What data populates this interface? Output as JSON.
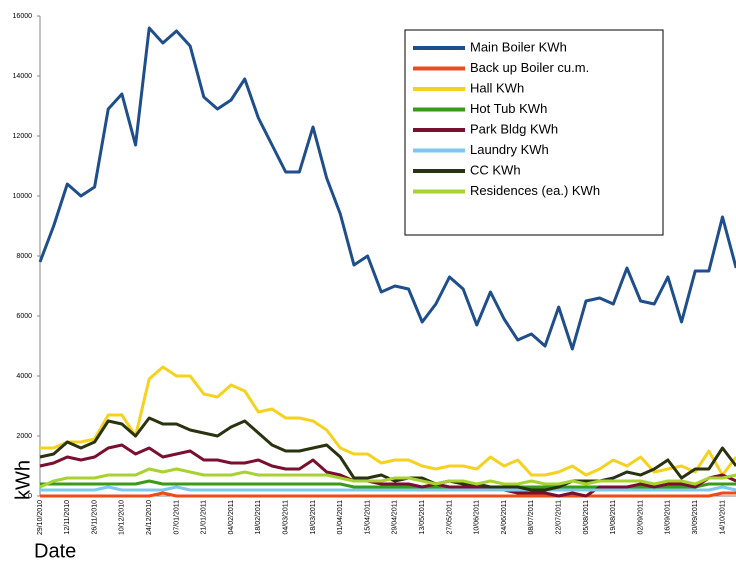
{
  "chart_data": {
    "type": "line",
    "x_label": "Date",
    "y_label": "kWh",
    "categories": [
      "29/10/2010",
      null,
      "12/11/2010",
      null,
      "26/11/2010",
      null,
      "10/12/2010",
      null,
      "24/12/2010",
      null,
      "07/01/2011",
      null,
      "21/01/2011",
      null,
      "04/02/2011",
      null,
      "18/02/2011",
      null,
      "04/03/2011",
      null,
      "18/03/2011",
      null,
      "01/04/2011",
      null,
      "15/04/2011",
      null,
      "29/04/2011",
      null,
      "13/05/2011",
      null,
      "27/05/2011",
      null,
      "10/06/2011",
      null,
      "24/06/2011",
      null,
      "08/07/2011",
      null,
      "22/07/2011",
      null,
      "05/08/2011",
      null,
      "19/08/2011",
      null,
      "02/09/2011",
      null,
      "16/09/2011",
      null,
      "30/09/2011",
      null,
      "14/10/2011",
      null
    ],
    "ylim": [
      0,
      16000
    ],
    "yticks": [
      0,
      2000,
      4000,
      6000,
      8000,
      10000,
      12000,
      14000,
      16000
    ],
    "grid": false,
    "legend": "top-right",
    "series": [
      {
        "name": "Main Boiler KWh",
        "color": "#1f4e8c",
        "values": [
          7800,
          9000,
          10400,
          10000,
          10300,
          12900,
          13400,
          11700,
          15600,
          15100,
          15500,
          15000,
          13300,
          12900,
          13200,
          13900,
          12600,
          11700,
          10800,
          10800,
          12300,
          10600,
          9400,
          7700,
          8000,
          6800,
          7000,
          6900,
          5800,
          6400,
          7300,
          6900,
          5700,
          6800,
          5900,
          5200,
          5400,
          5000,
          6300,
          4900,
          6500,
          6600,
          6400,
          7600,
          6500,
          6400,
          7300,
          5800,
          7500,
          7500,
          9300,
          7600
        ]
      },
      {
        "name": "Back up Boiler cu.m.",
        "color": "#f04a1a",
        "values": [
          0,
          0,
          0,
          0,
          0,
          0,
          0,
          0,
          0,
          100,
          0,
          0,
          0,
          0,
          0,
          0,
          0,
          0,
          0,
          0,
          0,
          0,
          0,
          0,
          0,
          0,
          0,
          0,
          0,
          0,
          0,
          0,
          0,
          0,
          0,
          0,
          0,
          0,
          0,
          0,
          0,
          0,
          0,
          0,
          0,
          0,
          0,
          0,
          0,
          0,
          100,
          100
        ]
      },
      {
        "name": "Hall KWh",
        "color": "#f5d21f",
        "values": [
          1600,
          1600,
          1800,
          1800,
          1900,
          2700,
          2700,
          2000,
          3900,
          4300,
          4000,
          4000,
          3400,
          3300,
          3700,
          3500,
          2800,
          2900,
          2600,
          2600,
          2500,
          2200,
          1600,
          1400,
          1400,
          1100,
          1200,
          1200,
          1000,
          900,
          1000,
          1000,
          900,
          1300,
          1000,
          1200,
          700,
          700,
          800,
          1000,
          700,
          900,
          1200,
          1000,
          1300,
          800,
          900,
          1000,
          800,
          1500,
          700,
          1300
        ]
      },
      {
        "name": "Hot Tub KWh",
        "color": "#3a9a1a",
        "values": [
          400,
          400,
          400,
          400,
          400,
          400,
          400,
          400,
          500,
          400,
          400,
          400,
          400,
          400,
          400,
          400,
          400,
          400,
          400,
          400,
          400,
          400,
          400,
          300,
          300,
          300,
          300,
          300,
          300,
          300,
          300,
          300,
          300,
          300,
          300,
          300,
          300,
          300,
          300,
          300,
          300,
          300,
          300,
          300,
          300,
          300,
          300,
          300,
          300,
          400,
          400,
          400
        ]
      },
      {
        "name": "Park Bldg KWh",
        "color": "#7a1030",
        "values": [
          1000,
          1100,
          1300,
          1200,
          1300,
          1600,
          1700,
          1400,
          1600,
          1300,
          1400,
          1500,
          1200,
          1200,
          1100,
          1100,
          1200,
          1000,
          900,
          900,
          1200,
          800,
          700,
          500,
          500,
          400,
          400,
          400,
          300,
          400,
          300,
          300,
          300,
          200,
          200,
          100,
          100,
          100,
          0,
          100,
          0,
          300,
          300,
          300,
          400,
          300,
          400,
          400,
          300,
          600,
          700,
          500
        ]
      },
      {
        "name": "Laundry KWh",
        "color": "#7ec8ef",
        "values": [
          200,
          200,
          200,
          200,
          200,
          300,
          200,
          200,
          200,
          200,
          300,
          200,
          200,
          200,
          200,
          200,
          200,
          200,
          200,
          200,
          200,
          200,
          200,
          200,
          200,
          200,
          200,
          200,
          200,
          200,
          200,
          200,
          200,
          200,
          200,
          200,
          200,
          200,
          200,
          200,
          200,
          200,
          200,
          200,
          200,
          200,
          200,
          200,
          200,
          200,
          300,
          200
        ]
      },
      {
        "name": "CC KWh",
        "color": "#2a3310",
        "values": [
          1300,
          1400,
          1800,
          1600,
          1800,
          2500,
          2400,
          2000,
          2600,
          2400,
          2400,
          2200,
          2100,
          2000,
          2300,
          2500,
          2100,
          1700,
          1500,
          1500,
          1600,
          1700,
          1300,
          600,
          600,
          700,
          500,
          600,
          600,
          400,
          500,
          400,
          400,
          300,
          300,
          300,
          200,
          200,
          300,
          500,
          500,
          500,
          600,
          800,
          700,
          900,
          1200,
          600,
          900,
          900,
          1600,
          1000
        ]
      },
      {
        "name": "Residences (ea.) KWh",
        "color": "#a8d22f",
        "values": [
          300,
          500,
          600,
          600,
          600,
          700,
          700,
          700,
          900,
          800,
          900,
          800,
          700,
          700,
          700,
          800,
          700,
          700,
          700,
          700,
          700,
          700,
          600,
          500,
          500,
          500,
          600,
          600,
          500,
          400,
          500,
          500,
          400,
          500,
          400,
          400,
          500,
          400,
          400,
          500,
          400,
          500,
          500,
          500,
          500,
          400,
          500,
          500,
          400,
          600,
          600,
          700
        ]
      }
    ]
  }
}
